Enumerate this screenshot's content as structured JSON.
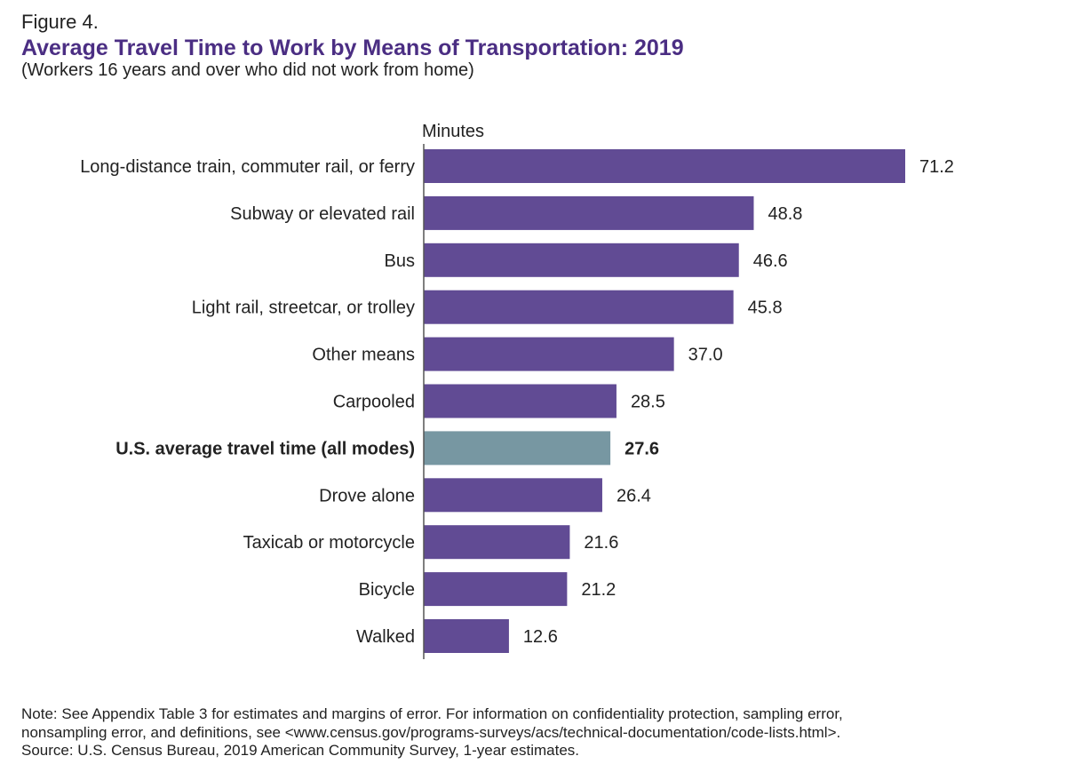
{
  "figure_label": "Figure 4.",
  "title": "Average Travel Time to Work by Means of Transportation: 2019",
  "subtitle": "(Workers 16 years and over who did not work from home)",
  "note_lines": [
    "Note: See Appendix Table 3 for estimates and margins of error. For information on confidentiality protection, sampling error,",
    "nonsampling error, and definitions, see <www.census.gov/programs-surveys/acs/technical-documentation/code-lists.html>.",
    "Source: U.S. Census Bureau, 2019 American Community Survey, 1-year estimates."
  ],
  "colors": {
    "bar": "#614b94",
    "highlight_bar": "#7797a2",
    "title": "#4b2e83",
    "axis": "#555555"
  },
  "chart_data": {
    "type": "bar",
    "orientation": "horizontal",
    "ylabel": "Minutes",
    "xlim": [
      0,
      71.2
    ],
    "grid": false,
    "legend": "none",
    "categories": [
      "Long-distance train, commuter rail, or ferry",
      "Subway or elevated rail",
      "Bus",
      "Light rail, streetcar, or trolley",
      "Other means",
      "Carpooled",
      "U.S. average travel time (all modes)",
      "Drove alone",
      "Taxicab or motorcycle",
      "Bicycle",
      "Walked"
    ],
    "values": [
      71.2,
      48.8,
      46.6,
      45.8,
      37.0,
      28.5,
      27.6,
      26.4,
      21.6,
      21.2,
      12.6
    ],
    "value_labels": [
      "71.2",
      "48.8",
      "46.6",
      "45.8",
      "37.0",
      "28.5",
      "27.6",
      "26.4",
      "21.6",
      "21.2",
      "12.6"
    ],
    "highlight": "U.S. average travel time (all modes)"
  }
}
